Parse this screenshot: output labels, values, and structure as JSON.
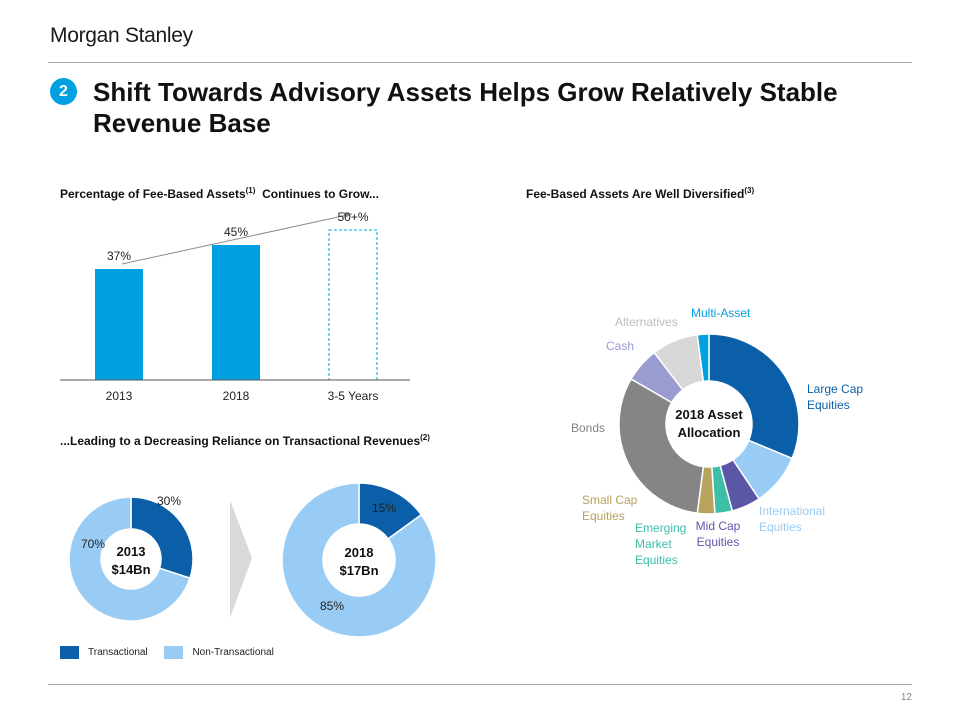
{
  "header": {
    "logo": "Morgan Stanley",
    "badge": "2",
    "title": "Shift Towards Advisory Assets Helps Grow Relatively Stable Revenue Base"
  },
  "page_number": "12",
  "sections": {
    "bar_title": "Percentage of Fee-Based Assets",
    "bar_title_sup": "(1)",
    "bar_title_tail": "Continues to Grow...",
    "donut_title": "...Leading to a Decreasing Reliance on Transactional Revenues",
    "donut_title_sup": "(2)",
    "pie_title": "Fee-Based Assets Are Well Diversified",
    "pie_title_sup": "(3)"
  },
  "legend": {
    "transactional": "Transactional",
    "non_transactional": "Non-Transactional"
  },
  "colors": {
    "navy": "#0a5fa8",
    "blue": "#00a0e3",
    "light_blue": "#99ccf5",
    "rule": "#a6a6a6",
    "badge": "#00a0e3"
  },
  "chart_data": [
    {
      "type": "bar",
      "categories": [
        "2013",
        "2018",
        "3-5 Years"
      ],
      "values": [
        37,
        45,
        50
      ],
      "value_labels": [
        "37%",
        "45%",
        "50+%"
      ],
      "styles": [
        "solid",
        "solid",
        "dashed-outline"
      ],
      "ylim": [
        0,
        60
      ],
      "annotation": "trend arrow"
    },
    {
      "type": "pie",
      "variant": "donut",
      "center_label": [
        "2013",
        "$14Bn"
      ],
      "slices": [
        {
          "name": "Transactional",
          "value": 30,
          "label": "30%"
        },
        {
          "name": "Non-Transactional",
          "value": 70,
          "label": "70%"
        }
      ]
    },
    {
      "type": "pie",
      "variant": "donut",
      "center_label": [
        "2018",
        "$17Bn"
      ],
      "slices": [
        {
          "name": "Transactional",
          "value": 15,
          "label": "15%"
        },
        {
          "name": "Non-Transactional",
          "value": 85,
          "label": "85%"
        }
      ]
    },
    {
      "type": "pie",
      "variant": "donut",
      "center_label": [
        "2018 Asset",
        "Allocation"
      ],
      "slices": [
        {
          "name": "Large Cap Equities",
          "label": [
            "Large Cap",
            "Equities"
          ],
          "value": 30,
          "color": "#0a5fa8"
        },
        {
          "name": "International Equities",
          "label": [
            "International",
            "Equities"
          ],
          "value": 9,
          "color": "#99ccf5"
        },
        {
          "name": "Mid Cap Equities",
          "label": [
            "Mid Cap",
            "Equities"
          ],
          "value": 5,
          "color": "#5b57a6"
        },
        {
          "name": "Emerging Market Equities",
          "label": [
            "Emerging",
            "Market",
            "Equities"
          ],
          "value": 3,
          "color": "#3cbfa6"
        },
        {
          "name": "Small Cap Equities",
          "label": [
            "Small Cap",
            "Equities"
          ],
          "value": 3,
          "color": "#b7a25e"
        },
        {
          "name": "Bonds",
          "label": [
            "Bonds"
          ],
          "value": 30,
          "color": "#858585"
        },
        {
          "name": "Cash",
          "label": [
            "Cash"
          ],
          "value": 6,
          "color": "#9a9cd0"
        },
        {
          "name": "Alternatives",
          "label": [
            "Alternatives"
          ],
          "value": 8,
          "color": "#d8d8d8"
        },
        {
          "name": "Multi-Asset",
          "label": [
            "Multi-Asset"
          ],
          "value": 2,
          "color": "#00a0e3"
        }
      ]
    }
  ]
}
